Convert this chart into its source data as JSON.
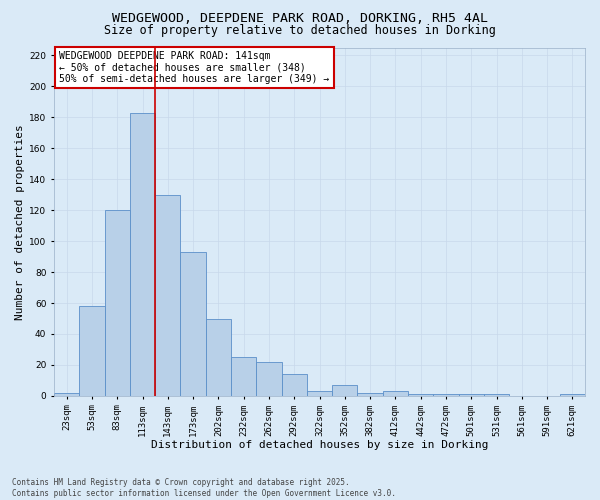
{
  "title_line1": "WEDGEWOOD, DEEPDENE PARK ROAD, DORKING, RH5 4AL",
  "title_line2": "Size of property relative to detached houses in Dorking",
  "xlabel": "Distribution of detached houses by size in Dorking",
  "ylabel": "Number of detached properties",
  "categories": [
    "23sqm",
    "53sqm",
    "83sqm",
    "113sqm",
    "143sqm",
    "173sqm",
    "202sqm",
    "232sqm",
    "262sqm",
    "292sqm",
    "322sqm",
    "352sqm",
    "382sqm",
    "412sqm",
    "442sqm",
    "472sqm",
    "501sqm",
    "531sqm",
    "561sqm",
    "591sqm",
    "621sqm"
  ],
  "values": [
    2,
    58,
    120,
    183,
    130,
    93,
    50,
    25,
    22,
    14,
    3,
    7,
    2,
    3,
    1,
    1,
    1,
    1,
    0,
    0,
    1
  ],
  "bar_color": "#b8d0e8",
  "bar_edge_color": "#5b8fc9",
  "grid_color": "#c8d8eb",
  "background_color": "#daeaf7",
  "vline_color": "#cc0000",
  "annotation_text": "WEDGEWOOD DEEPDENE PARK ROAD: 141sqm\n← 50% of detached houses are smaller (348)\n50% of semi-detached houses are larger (349) →",
  "annotation_box_color": "#ffffff",
  "annotation_box_edge": "#cc0000",
  "ylim": [
    0,
    225
  ],
  "yticks": [
    0,
    20,
    40,
    60,
    80,
    100,
    120,
    140,
    160,
    180,
    200,
    220
  ],
  "footnote": "Contains HM Land Registry data © Crown copyright and database right 2025.\nContains public sector information licensed under the Open Government Licence v3.0.",
  "title_fontsize": 9.5,
  "subtitle_fontsize": 8.5,
  "tick_fontsize": 6.5,
  "label_fontsize": 8,
  "annot_fontsize": 7
}
